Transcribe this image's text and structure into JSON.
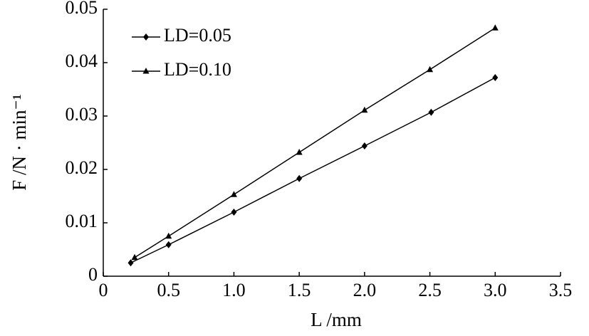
{
  "chart_data": {
    "type": "line",
    "x_label": "L /mm",
    "y_label": "F /N · min⁻¹",
    "xlim": [
      0,
      3.5
    ],
    "xticks": [
      0,
      0.5,
      {
        "value": 1,
        "label": "1.0"
      },
      1.5,
      {
        "value": 2,
        "label": "2.0"
      },
      2.5,
      {
        "value": 3,
        "label": "3.0"
      },
      3.5
    ],
    "ylim": [
      0,
      0.05
    ],
    "yticks": [
      0,
      0.01,
      0.02,
      0.03,
      0.04,
      0.05
    ],
    "legend": "upper-left",
    "series": [
      {
        "name": "LD=0.05",
        "color": "#000000",
        "marker": "diamond",
        "x": [
          0.21,
          0.5,
          1.0,
          1.5,
          2.0,
          2.51,
          3.0
        ],
        "values": [
          0.0025,
          0.0059,
          0.012,
          0.0183,
          0.0244,
          0.0307,
          0.0372
        ]
      },
      {
        "name": "LD=0.10",
        "color": "#000000",
        "marker": "triangle",
        "x": [
          0.24,
          0.5,
          1.0,
          1.5,
          2.0,
          2.5,
          3.0
        ],
        "values": [
          0.0035,
          0.0075,
          0.0153,
          0.0232,
          0.0311,
          0.0387,
          0.0465
        ]
      }
    ]
  }
}
